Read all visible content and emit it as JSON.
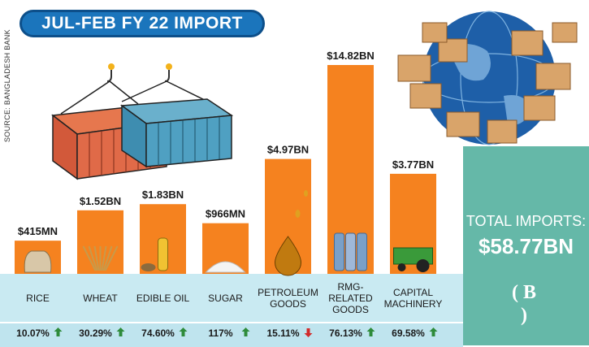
{
  "title": "JUL-FEB FY 22 IMPORT",
  "source": "SOURCE: BANGLADESH BANK",
  "total": {
    "label": "TOTAL IMPORTS:",
    "value": "$58.77BN"
  },
  "logo_text": "B",
  "colors": {
    "bar": "#f5821f",
    "title_bg": "#1b75bc",
    "panel": "#c9eaf2",
    "right_panel": "#65b8a8",
    "up_arrow": "#2e8b3a",
    "down_arrow": "#d12c2c"
  },
  "chart_data": {
    "type": "bar",
    "title": "JUL-FEB FY 22 IMPORT",
    "unit": "USD",
    "categories": [
      "RICE",
      "WHEAT",
      "EDIBLE OIL",
      "SUGAR",
      "PETROLEUM GOODS",
      "RMG-RELATED GOODS",
      "CAPITAL MACHINERY"
    ],
    "category_lines": [
      [
        "RICE"
      ],
      [
        "WHEAT"
      ],
      [
        "EDIBLE OIL"
      ],
      [
        "SUGAR"
      ],
      [
        "PETROLEUM",
        "GOODS"
      ],
      [
        "RMG-",
        "RELATED",
        "GOODS"
      ],
      [
        "CAPITAL",
        "MACHINERY"
      ]
    ],
    "values_bn": [
      0.415,
      1.52,
      1.83,
      0.966,
      4.97,
      14.82,
      3.77
    ],
    "value_labels": [
      "$415MN",
      "$1.52BN",
      "$1.83BN",
      "$966MN",
      "$4.97BN",
      "$14.82BN",
      "$3.77BN"
    ],
    "growth_labels": [
      "10.07%",
      "30.29%",
      "74.60%",
      "117%",
      "15.11%",
      "76.13%",
      "69.58%"
    ],
    "growth_direction": [
      "up",
      "up",
      "up",
      "up",
      "down",
      "up",
      "up"
    ],
    "icons": [
      "rice-sack-icon",
      "wheat-icon",
      "oil-bottle-icon",
      "sugar-pile-icon",
      "oil-drop-icon",
      "yarn-spools-icon",
      "harvester-icon"
    ]
  }
}
